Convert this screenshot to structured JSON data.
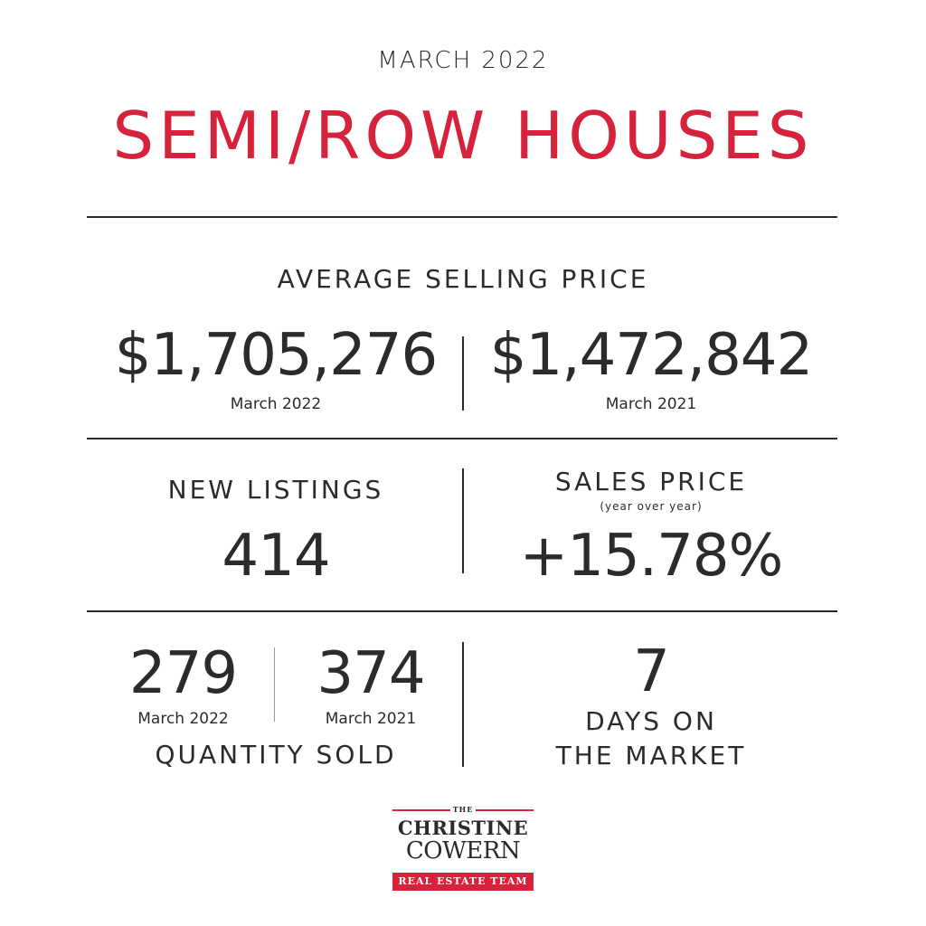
{
  "header": {
    "month": "MARCH 2022",
    "title": "SEMI/ROW HOUSES"
  },
  "average_selling_price": {
    "label": "AVERAGE SELLING PRICE",
    "current": {
      "value": "$1,705,276",
      "period": "March 2022"
    },
    "previous": {
      "value": "$1,472,842",
      "period": "March 2021"
    }
  },
  "new_listings": {
    "label": "NEW LISTINGS",
    "value": "414"
  },
  "sales_price": {
    "label": "SALES PRICE",
    "sublabel": "(year over year)",
    "value": "+15.78%"
  },
  "quantity_sold": {
    "label": "QUANTITY SOLD",
    "current": {
      "value": "279",
      "period": "March 2022"
    },
    "previous": {
      "value": "374",
      "period": "March 2021"
    }
  },
  "days_on_market": {
    "value": "7",
    "label_line1": "DAYS ON",
    "label_line2": "THE MARKET"
  },
  "logo": {
    "the": "THE",
    "name_line1": "CHRISTINE",
    "name_line2": "COWERN",
    "tagline": "REAL ESTATE TEAM"
  },
  "colors": {
    "accent": "#d6223a",
    "text": "#2b2b2b",
    "background": "#ffffff"
  }
}
